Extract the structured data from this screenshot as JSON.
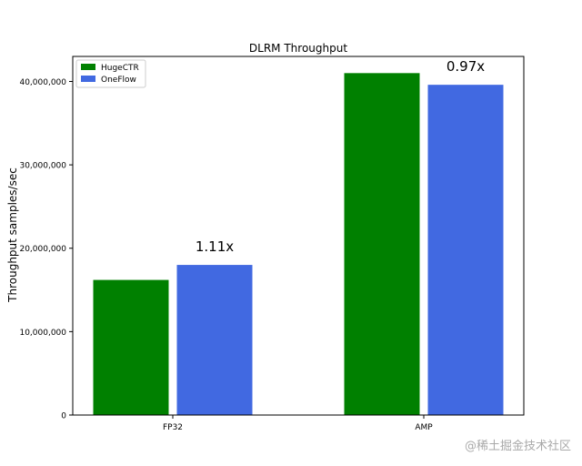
{
  "chart_data": {
    "type": "bar",
    "title": "DLRM Throughput",
    "ylabel": "Throughput samples/sec",
    "xlabel": "",
    "categories": [
      "FP32",
      "AMP"
    ],
    "series": [
      {
        "name": "HugeCTR",
        "values": [
          16200000,
          41000000
        ],
        "color": "#008000"
      },
      {
        "name": "OneFlow",
        "values": [
          18000000,
          39600000
        ],
        "color": "#4169e1"
      }
    ],
    "annotations": [
      "1.11x",
      "0.97x"
    ],
    "ylim": [
      0,
      43000000
    ],
    "yticks": [
      0,
      10000000,
      20000000,
      30000000,
      40000000
    ],
    "ytick_labels": [
      "0",
      "10,000,000",
      "20,000,000",
      "30,000,000",
      "40,000,000"
    ],
    "grid": false,
    "legend_position": "top-left"
  },
  "watermark": "@稀土掘金技术社区"
}
